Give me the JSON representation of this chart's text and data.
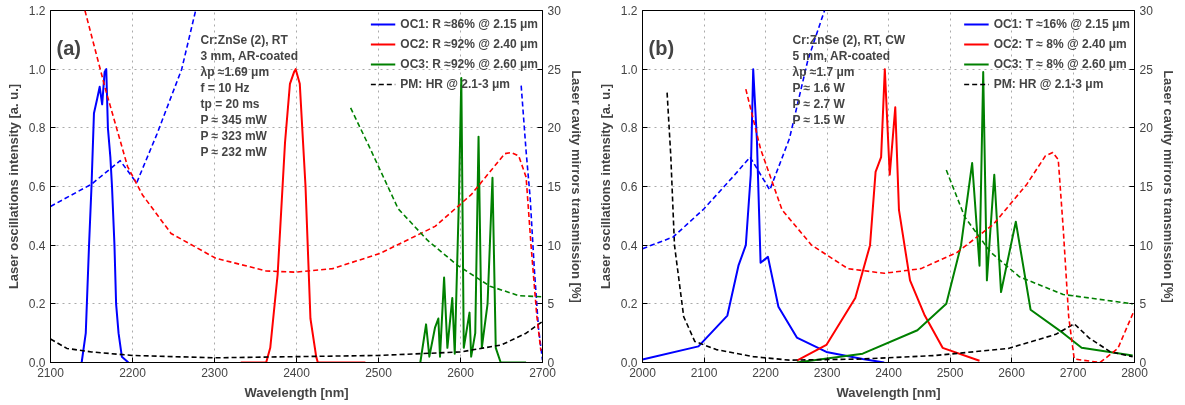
{
  "chart_data": [
    {
      "type": "line",
      "xlabel": "Wavelength [nm]",
      "ylabel": "Laser oscillations intensity [a. u.]",
      "y2label": "Laser cavity mirrors transmission [%]",
      "xlim": [
        2100,
        2700
      ],
      "xticks": [
        2100,
        2200,
        2300,
        2400,
        2500,
        2600,
        2700
      ],
      "ylim": [
        0,
        1.2
      ],
      "yticks": [
        {
          "value": 0,
          "label": "0.0"
        },
        {
          "value": 0.2,
          "label": "0.2"
        },
        {
          "value": 0.4,
          "label": "0.4"
        },
        {
          "value": 0.6,
          "label": "0.6"
        },
        {
          "value": 0.8,
          "label": "0.8"
        },
        {
          "value": 1.0,
          "label": "1.0"
        },
        {
          "value": 1.2,
          "label": "1.2"
        }
      ],
      "y2lim": [
        0,
        30
      ],
      "y2ticks": [
        0,
        5,
        10,
        15,
        20,
        25,
        30
      ],
      "grid": true,
      "legend": "top right",
      "series": [
        {
          "name": "OC1: R ≈86% @ 2.15 μm",
          "color": "#0000ff",
          "line_style": "solid",
          "x": [
            2138,
            2143,
            2147,
            2150,
            2153,
            2157,
            2160,
            2163,
            2166,
            2168,
            2170,
            2173,
            2175,
            2178,
            2180,
            2183,
            2187,
            2195
          ],
          "values": [
            0,
            0.1,
            0.4,
            0.6,
            0.85,
            0.9,
            0.94,
            0.88,
            0.99,
            1.0,
            0.8,
            0.7,
            0.6,
            0.4,
            0.2,
            0.1,
            0.02,
            0
          ]
        },
        {
          "name": "OC2: R ≈92% @ 2.40 μm",
          "color": "#ff0000",
          "line_style": "solid",
          "x": [
            2332,
            2363,
            2368,
            2377,
            2386,
            2392,
            2397,
            2399,
            2404,
            2411,
            2417,
            2424,
            2426,
            2484
          ],
          "values": [
            0,
            0,
            0.05,
            0.3,
            0.75,
            0.95,
            0.99,
            1.0,
            0.95,
            0.6,
            0.15,
            0.02,
            0,
            0
          ]
        },
        {
          "name": "OC3: R ≈92% @ 2.60 μm",
          "color": "#008000",
          "line_style": "solid",
          "x": [
            2551,
            2558,
            2562,
            2569,
            2573,
            2575,
            2580,
            2584,
            2590,
            2593,
            2598,
            2601,
            2604,
            2611,
            2613,
            2618,
            2622,
            2626,
            2633,
            2639,
            2643,
            2649,
            2680
          ],
          "values": [
            0,
            0.13,
            0.02,
            0.12,
            0.15,
            0.02,
            0.29,
            0.05,
            0.22,
            0.03,
            0.55,
            0.97,
            0.05,
            0.17,
            0.02,
            0.1,
            0.77,
            0.05,
            0.2,
            0.63,
            0.05,
            0,
            0
          ]
        },
        {
          "name": "PM: HR @ 2.1-3 μm",
          "color": "#000000",
          "line_style": "dashed",
          "axis": "y2",
          "x": [
            2100,
            2120,
            2150,
            2200,
            2300,
            2400,
            2500,
            2600,
            2650,
            2680,
            2700
          ],
          "values": [
            2.0,
            1.2,
            0.9,
            0.6,
            0.4,
            0.5,
            0.6,
            0.9,
            1.5,
            2.5,
            3.5
          ]
        },
        {
          "color": "#0000ff",
          "line_style": "dashed",
          "axis": "y2",
          "x": [
            2100,
            2150,
            2185,
            2205,
            2230,
            2260,
            2277,
            2500,
            2674,
            2680,
            2685,
            2690,
            2695,
            2700
          ],
          "values": [
            13.3,
            15.2,
            17.2,
            15.3,
            19.5,
            25,
            30,
            null,
            23.6,
            18,
            14,
            8,
            3,
            0.2
          ]
        },
        {
          "color": "#ff0000",
          "line_style": "dashed",
          "axis": "y2",
          "x": [
            2142,
            2167,
            2194,
            2212,
            2247,
            2301,
            2363,
            2399,
            2444,
            2502,
            2569,
            2613,
            2654,
            2662,
            2671,
            2680,
            2686,
            2693,
            2698
          ],
          "values": [
            30,
            23.3,
            16.7,
            14.3,
            11,
            8.9,
            7.8,
            7.7,
            8.0,
            9.3,
            11.6,
            14.3,
            17.8,
            17.9,
            17.6,
            15.8,
            10,
            4,
            1
          ]
        },
        {
          "color": "#008000",
          "line_style": "dashed",
          "axis": "y2",
          "x": [
            2466,
            2488,
            2524,
            2560,
            2596,
            2636,
            2671,
            2700
          ],
          "values": [
            21.7,
            18.5,
            13.1,
            10.4,
            8.3,
            6.5,
            5.7,
            5.6
          ]
        }
      ],
      "annotations": [
        "(a)",
        "Cr:ZnSe (2), RT",
        "3 mm, AR-coated",
        "λp ≈1.69 μm",
        "f = 10 Hz",
        "tp = 20 ms",
        "P ≈ 345 mW",
        "P ≈ 323 mW",
        "P ≈ 232 mW"
      ]
    },
    {
      "type": "line",
      "xlabel": "Wavelength [nm]",
      "ylabel": "Laser oscillations intensity [a. u.]",
      "y2label": "Laser cavity mirrors transmission [%]",
      "xlim": [
        2000,
        2800
      ],
      "xticks": [
        2000,
        2100,
        2200,
        2300,
        2400,
        2500,
        2600,
        2700,
        2800
      ],
      "ylim": [
        0,
        1.2
      ],
      "yticks": [
        {
          "value": 0,
          "label": "0.0"
        },
        {
          "value": 0.2,
          "label": "0.2"
        },
        {
          "value": 0.4,
          "label": "0.4"
        },
        {
          "value": 0.6,
          "label": "0.6"
        },
        {
          "value": 0.8,
          "label": "0.8"
        },
        {
          "value": 1.0,
          "label": "1.0"
        },
        {
          "value": 1.2,
          "label": "1.2"
        }
      ],
      "y2lim": [
        0,
        30
      ],
      "y2ticks": [
        0,
        5,
        10,
        15,
        20,
        25,
        30
      ],
      "grid": true,
      "legend": "top right",
      "series": [
        {
          "name": "OC1: T ≈16% @ 2.15 μm",
          "color": "#0000ff",
          "line_style": "solid",
          "x": [
            2000,
            2091,
            2138,
            2156,
            2168,
            2176,
            2180,
            2186,
            2192,
            2204,
            2221,
            2251,
            2299,
            2358,
            2393
          ],
          "values": [
            0.01,
            0.055,
            0.16,
            0.33,
            0.4,
            0.64,
            1.0,
            0.76,
            0.34,
            0.36,
            0.19,
            0.085,
            0.036,
            0.012,
            0
          ]
        },
        {
          "name": "OC2: T ≈ 8% @ 2.40 μm",
          "color": "#ff0000",
          "line_style": "solid",
          "x": [
            2251,
            2299,
            2346,
            2370,
            2379,
            2388,
            2394,
            2402,
            2411,
            2417,
            2435,
            2459,
            2488,
            2548
          ],
          "values": [
            0.006,
            0.06,
            0.22,
            0.4,
            0.65,
            0.7,
            1.0,
            0.64,
            0.87,
            0.52,
            0.28,
            0.16,
            0.05,
            0.006
          ]
        },
        {
          "name": "OC3: T ≈ 8% @ 2.60 μm",
          "color": "#008000",
          "line_style": "solid",
          "x": [
            2251,
            2358,
            2447,
            2494,
            2518,
            2536,
            2548,
            2554,
            2560,
            2572,
            2583,
            2607,
            2631,
            2684,
            2714,
            2797
          ],
          "values": [
            0,
            0.03,
            0.11,
            0.2,
            0.4,
            0.68,
            0.33,
            0.99,
            0.28,
            0.64,
            0.24,
            0.48,
            0.18,
            0.1,
            0.05,
            0.024
          ]
        },
        {
          "name": "PM: HR @ 2.1-3 μm",
          "color": "#000000",
          "line_style": "dashed",
          "axis": "y2",
          "x": [
            2040,
            2046,
            2052,
            2067,
            2085,
            2120,
            2180,
            2239,
            2358,
            2477,
            2595,
            2672,
            2702,
            2726,
            2761,
            2797
          ],
          "values": [
            23,
            17.6,
            10,
            3.9,
            1.8,
            1.1,
            0.5,
            0.2,
            0.3,
            0.6,
            1.2,
            2.4,
            3.3,
            2.1,
            0.9,
            0.5
          ]
        },
        {
          "color": "#0000ff",
          "line_style": "dashed",
          "axis": "y2",
          "x": [
            2000,
            2050,
            2100,
            2150,
            2175,
            2207,
            2239,
            2269,
            2296
          ],
          "values": [
            9.7,
            10.7,
            13.1,
            16,
            17.5,
            14.7,
            19.1,
            25.8,
            30
          ]
        },
        {
          "color": "#ff0000",
          "line_style": "dashed",
          "axis": "y2",
          "x": [
            2168,
            2192,
            2227,
            2275,
            2334,
            2393,
            2453,
            2512,
            2571,
            2625,
            2655,
            2667,
            2676,
            2684,
            2693,
            2702,
            2744,
            2773,
            2800
          ],
          "values": [
            23.3,
            18.2,
            13,
            10,
            8.0,
            7.6,
            8.0,
            9.4,
            11.8,
            15.2,
            17.6,
            17.9,
            17.3,
            11.5,
            3.9,
            0.3,
            0,
            1.2,
            4.5
          ]
        },
        {
          "color": "#008000",
          "line_style": "dashed",
          "axis": "y2",
          "x": [
            2494,
            2524,
            2566,
            2613,
            2684,
            2797
          ],
          "values": [
            16.4,
            12.4,
            9.4,
            7.3,
            5.8,
            5.0
          ]
        }
      ],
      "annotations": [
        "(b)",
        "Cr:ZnSe (2), RT, CW",
        "5 mm, AR-coated",
        "λp ≈1.7 μm",
        "P ≈ 1.6 W",
        "P ≈ 2.7 W",
        "P ≈ 1.5 W"
      ]
    }
  ]
}
